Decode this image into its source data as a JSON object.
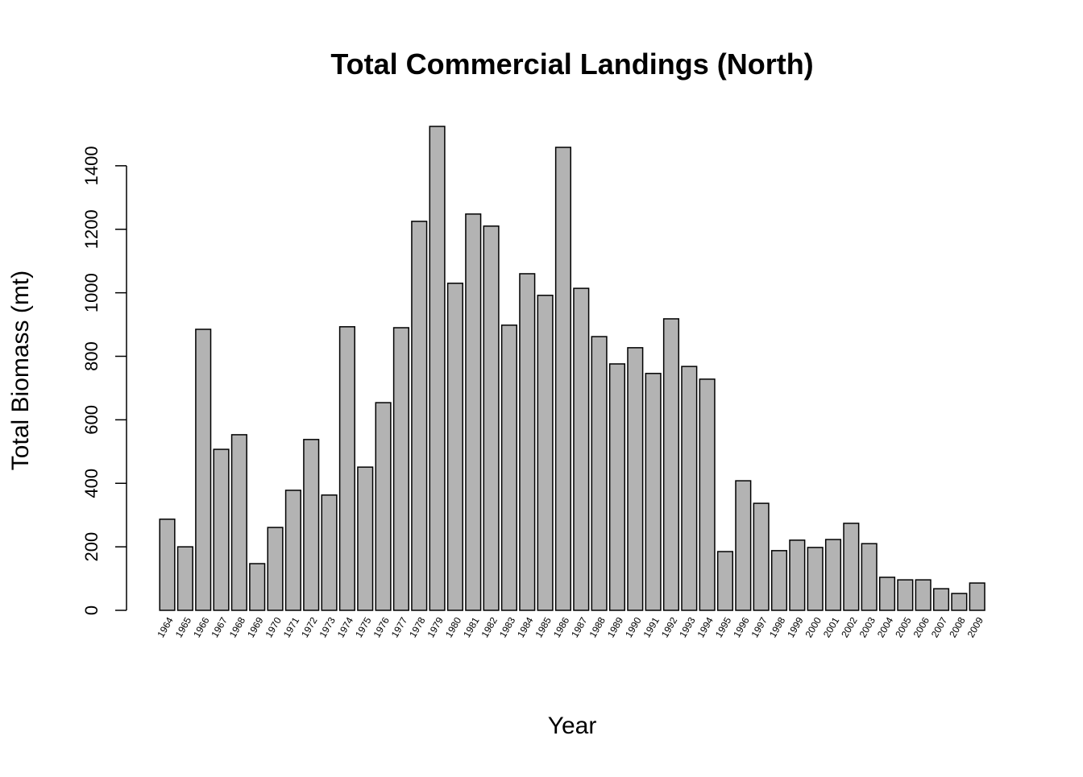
{
  "chart_data": {
    "type": "bar",
    "title": "Total Commercial Landings (North)",
    "x_label": "Year",
    "y_label": "Total Biomass (mt)",
    "categories": [
      "1964",
      "1965",
      "1966",
      "1967",
      "1968",
      "1969",
      "1970",
      "1971",
      "1972",
      "1973",
      "1974",
      "1975",
      "1976",
      "1977",
      "1978",
      "1979",
      "1980",
      "1981",
      "1982",
      "1983",
      "1984",
      "1985",
      "1986",
      "1987",
      "1988",
      "1989",
      "1990",
      "1991",
      "1992",
      "1993",
      "1994",
      "1995",
      "1996",
      "1997",
      "1998",
      "1999",
      "2000",
      "2001",
      "2002",
      "2003",
      "2004",
      "2005",
      "2006",
      "2007",
      "2008",
      "2009"
    ],
    "values": [
      287,
      200,
      885,
      507,
      553,
      147,
      261,
      378,
      538,
      363,
      893,
      451,
      654,
      890,
      1225,
      1524,
      1030,
      1248,
      1210,
      898,
      1060,
      992,
      1458,
      1014,
      862,
      776,
      827,
      746,
      918,
      768,
      728,
      185,
      408,
      337,
      188,
      221,
      198,
      223,
      274,
      210,
      104,
      96,
      96,
      68,
      53,
      86
    ],
    "color": "#b3b3b3",
    "ylim": [
      0,
      1600
    ],
    "yticks": [
      0,
      200,
      400,
      600,
      800,
      1000,
      1200,
      1400
    ],
    "grid": false
  }
}
